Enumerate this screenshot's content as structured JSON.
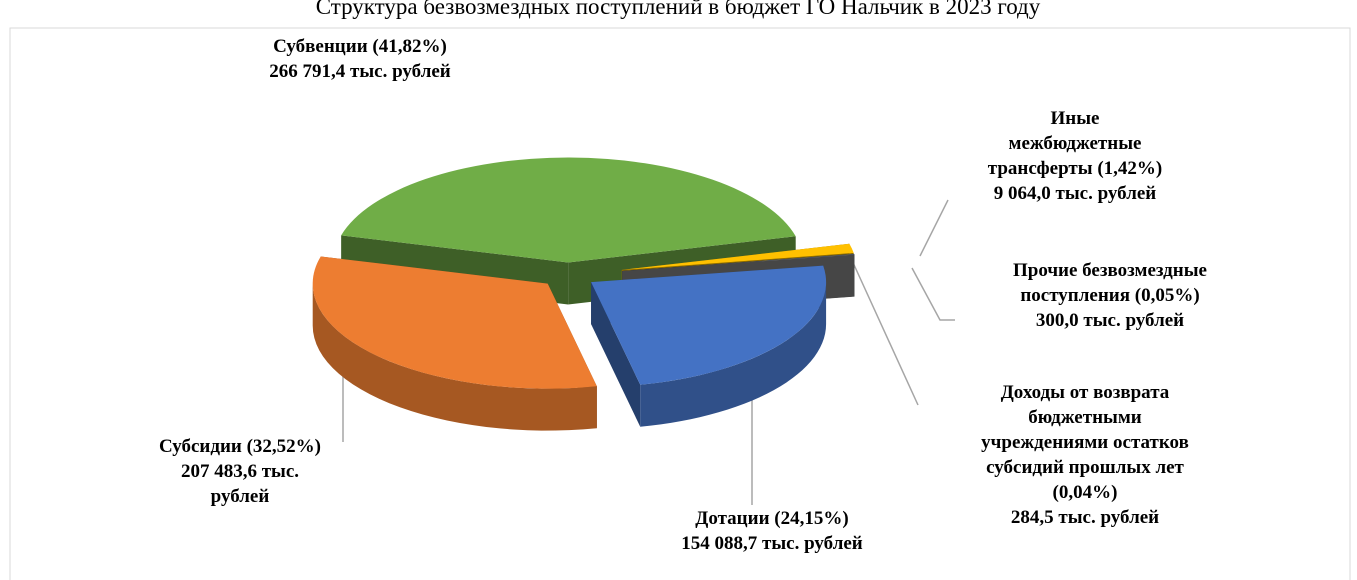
{
  "chart_data": {
    "type": "pie3d",
    "title": "Структура безвозмездных поступлений в бюджет ГО Нальчик в 2023 году",
    "values": [
      41.82,
      1.42,
      0.05,
      0.04,
      24.15,
      32.52
    ],
    "colors": [
      "#70ad47",
      "#ffc000",
      "#264478",
      "#7f7f7f",
      "#4472c4",
      "#ed7d31"
    ],
    "labels": [
      [
        "Субвенции (41,82%)",
        "266 791,4 тыс. рублей"
      ],
      [
        "Иные",
        "межбюджетные",
        "трансферты (1,42%)",
        "9 064,0 тыс. рублей"
      ],
      [
        "Прочие безвозмездные",
        "поступления (0,05%)",
        "300,0 тыс. рублей"
      ],
      [
        "Доходы от возврата",
        "бюджетными",
        "учреждениями остатков",
        "субсидий прошлых лет",
        "(0,04%)",
        "284,5 тыс. рублей"
      ],
      [
        "Дотации (24,15%)",
        "154 088,7 тыс. рублей"
      ],
      [
        "Субсидии (32,52%)",
        "207 483,6 тыс.",
        "рублей"
      ]
    ]
  }
}
